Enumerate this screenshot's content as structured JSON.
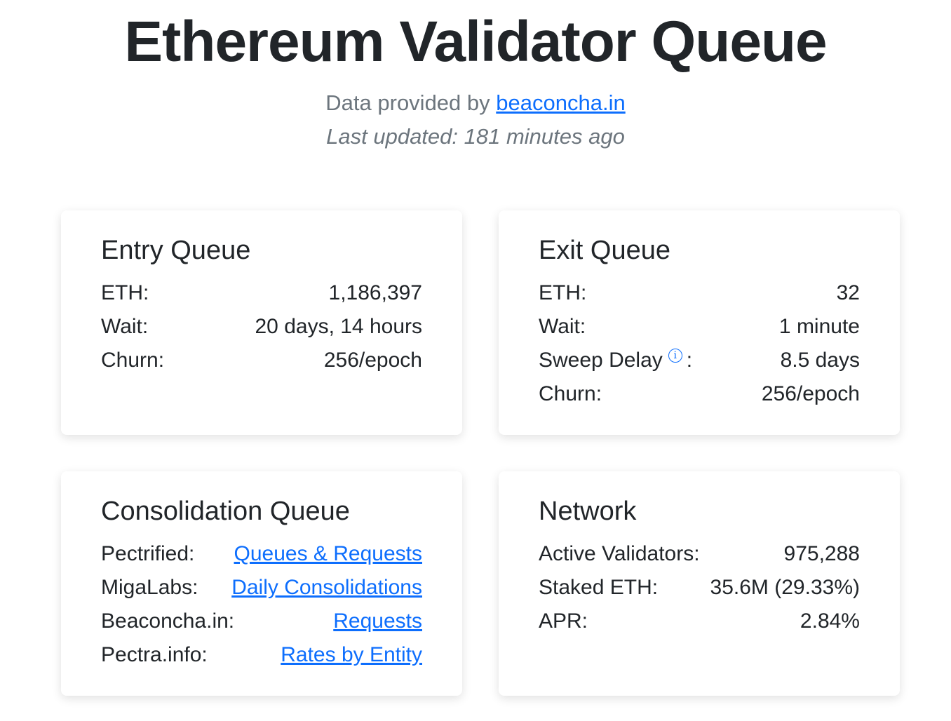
{
  "header": {
    "title": "Ethereum Validator Queue",
    "provider_prefix": "Data provided by",
    "provider_link": "beaconcha.in",
    "updated": "Last updated: 181 minutes ago"
  },
  "cards": [
    {
      "title": "Entry Queue",
      "rows": [
        {
          "label": "ETH:",
          "value": "1,186,397"
        },
        {
          "label": "Wait:",
          "value": "20 days, 14 hours"
        },
        {
          "label": "Churn:",
          "value": "256/epoch"
        }
      ]
    },
    {
      "title": "Exit Queue",
      "rows": [
        {
          "label": "ETH:",
          "value": "32"
        },
        {
          "label": "Wait:",
          "value": "1 minute"
        },
        {
          "label": "Sweep Delay",
          "label_suffix": ":",
          "value": "8.5 days"
        },
        {
          "label": "Churn:",
          "value": "256/epoch"
        }
      ]
    },
    {
      "title": "Consolidation Queue",
      "rows": [
        {
          "label": "Pectrified:",
          "link": "Queues & Requests"
        },
        {
          "label": "MigaLabs:",
          "link": "Daily Consolidations"
        },
        {
          "label": "Beaconcha.in:",
          "link": "Requests"
        },
        {
          "label": "Pectra.info:",
          "link": "Rates by Entity"
        }
      ]
    },
    {
      "title": "Network",
      "rows": [
        {
          "label": "Active Validators:",
          "value": "975,288"
        },
        {
          "label": "Staked ETH:",
          "value": "35.6M (29.33%)"
        },
        {
          "label": "APR:",
          "value": "2.84%"
        }
      ]
    }
  ]
}
